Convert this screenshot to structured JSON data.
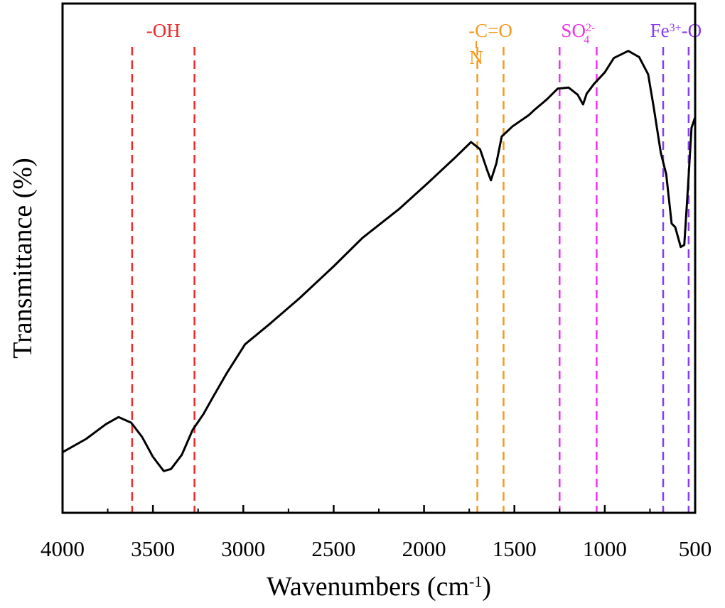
{
  "chart_data": {
    "type": "line",
    "x_label": [
      "Wavenumbers (cm",
      "-1",
      ")"
    ],
    "y_label": "Transmittance (%)",
    "xlim": [
      4000,
      500
    ],
    "ylim": [
      0,
      100
    ],
    "xticks": [
      4000,
      3500,
      3000,
      2500,
      2000,
      1500,
      1000,
      500
    ],
    "xminorticks": [
      3750,
      3250,
      2750,
      2250,
      1750,
      1250,
      750
    ],
    "series": [
      {
        "color": "#000000",
        "x": [
          4000,
          3870,
          3760,
          3690,
          3620,
          3560,
          3500,
          3440,
          3400,
          3340,
          3280,
          3220,
          3170,
          3090,
          2990,
          2850,
          2690,
          2500,
          2340,
          2140,
          1990,
          1830,
          1740,
          1690,
          1650,
          1630,
          1600,
          1570,
          1510,
          1420,
          1390,
          1320,
          1260,
          1200,
          1150,
          1120,
          1100,
          1060,
          1000,
          950,
          870,
          810,
          760,
          730,
          690,
          660,
          630,
          610,
          580,
          560,
          540,
          520,
          500
        ],
        "values": [
          11.9,
          14.5,
          17.4,
          18.8,
          17.7,
          14.9,
          11.0,
          8.2,
          8.6,
          11.4,
          16.3,
          19.4,
          22.6,
          27.5,
          33.1,
          37.2,
          42.1,
          48.4,
          54.0,
          59.6,
          64.4,
          69.7,
          72.8,
          71.4,
          67.2,
          65.3,
          68.6,
          73.9,
          75.9,
          78.1,
          79.1,
          81.2,
          83.3,
          83.5,
          82.1,
          80.2,
          82.3,
          84.2,
          86.5,
          89.3,
          90.7,
          89.5,
          86.1,
          79.8,
          70.7,
          66.5,
          56.8,
          56.1,
          52.2,
          52.6,
          63.7,
          75.6,
          77.7
        ]
      }
    ],
    "annotations": [
      {
        "color": "#ee2a2a",
        "lines": [
          3615,
          3270
        ],
        "label": [
          {
            "text": "-OH",
            "style": "normal"
          }
        ]
      },
      {
        "color": "#f39a1e",
        "lines": [
          1705,
          1560
        ],
        "label": [
          {
            "text": "-C=O",
            "style": "normal"
          },
          {
            "text": "N",
            "style": "below"
          }
        ]
      },
      {
        "color": "#ee30ee",
        "lines": [
          1250,
          1045
        ],
        "label": [
          {
            "text": "SO",
            "style": "normal"
          },
          {
            "text": "2-",
            "style": "sup"
          },
          {
            "text": "4",
            "style": "sub"
          }
        ]
      },
      {
        "color": "#8a3cf0",
        "lines": [
          677,
          536
        ],
        "label": [
          {
            "text": "Fe",
            "style": "normal"
          },
          {
            "text": "3+",
            "style": "sup"
          },
          {
            "text": "-O",
            "style": "normal"
          }
        ]
      }
    ]
  }
}
